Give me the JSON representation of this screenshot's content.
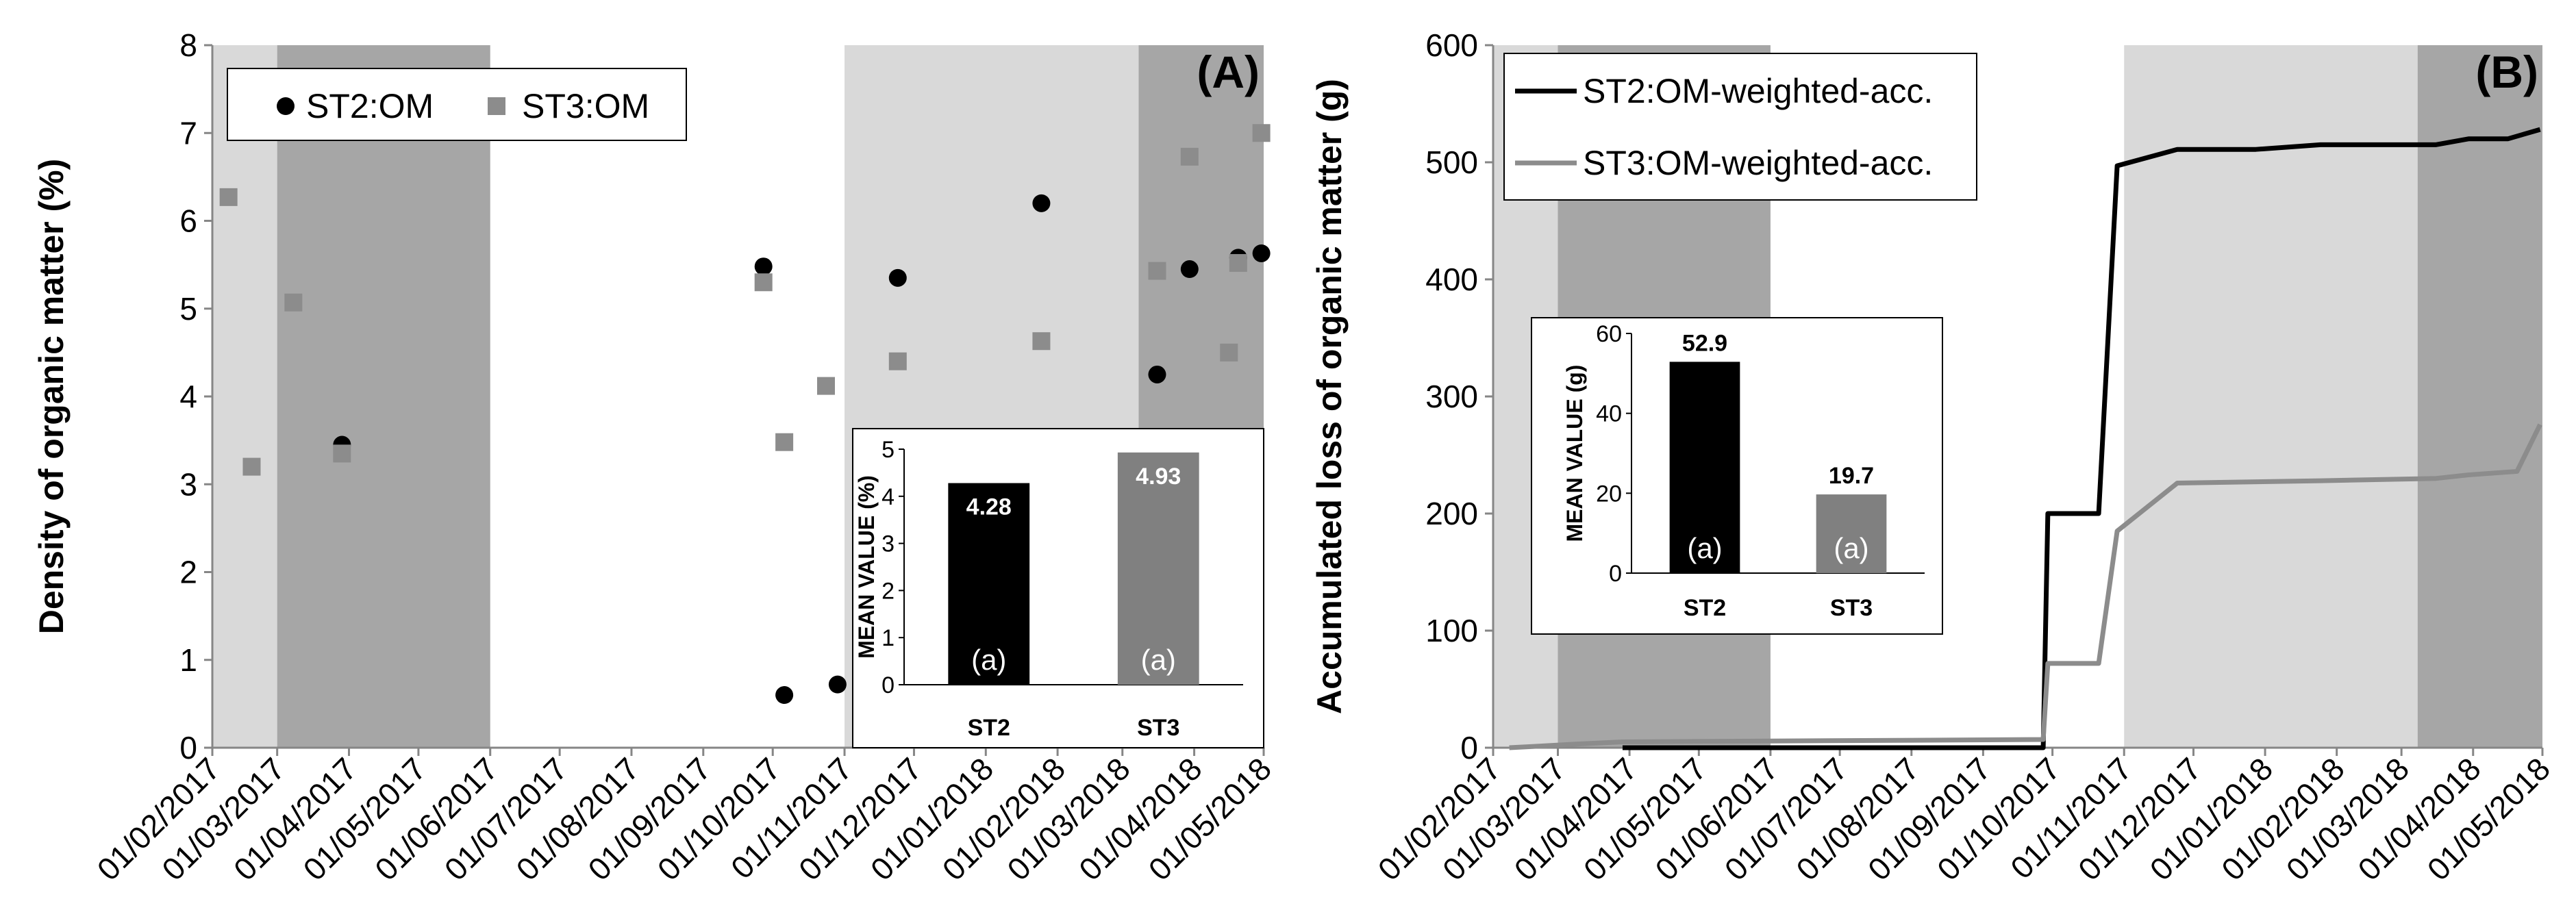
{
  "chart_data": [
    {
      "panel_label": "(A)",
      "type": "scatter",
      "ylabel": "Density of organic matter (%)",
      "ylim": [
        0,
        8
      ],
      "yticks": [
        "0",
        "1",
        "2",
        "3",
        "4",
        "5",
        "6",
        "7",
        "8"
      ],
      "x_start": "2017-02-01",
      "x_end": "2018-05-01",
      "xticks": [
        "01/02/2017",
        "01/03/2017",
        "01/04/2017",
        "01/05/2017",
        "01/06/2017",
        "01/07/2017",
        "01/08/2017",
        "01/09/2017",
        "01/10/2017",
        "01/11/2017",
        "01/12/2017",
        "01/01/2018",
        "01/02/2018",
        "01/03/2018",
        "01/04/2018",
        "01/05/2018"
      ],
      "shaded_periods": [
        {
          "from": "2017-02-01",
          "to": "2017-03-01",
          "shade": "light"
        },
        {
          "from": "2017-03-01",
          "to": "2017-06-01",
          "shade": "dark"
        },
        {
          "from": "2017-11-01",
          "to": "2018-03-08",
          "shade": "light"
        },
        {
          "from": "2018-03-08",
          "to": "2018-05-01",
          "shade": "dark"
        }
      ],
      "series": [
        {
          "name": "ST2:OM",
          "marker": "circle",
          "color": "#000000",
          "points": [
            {
              "date": "2017-03-29",
              "value": 3.45
            },
            {
              "date": "2017-09-27",
              "value": 5.48
            },
            {
              "date": "2017-10-06",
              "value": 0.6
            },
            {
              "date": "2017-10-29",
              "value": 0.72
            },
            {
              "date": "2017-11-24",
              "value": 5.35
            },
            {
              "date": "2018-01-25",
              "value": 6.2
            },
            {
              "date": "2018-03-16",
              "value": 4.25
            },
            {
              "date": "2018-03-30",
              "value": 5.45
            },
            {
              "date": "2018-04-20",
              "value": 5.58
            },
            {
              "date": "2018-04-30",
              "value": 5.63
            }
          ]
        },
        {
          "name": "ST3:OM",
          "marker": "square",
          "color": "#8c8c8c",
          "points": [
            {
              "date": "2017-02-08",
              "value": 6.27
            },
            {
              "date": "2017-02-18",
              "value": 3.2
            },
            {
              "date": "2017-03-08",
              "value": 5.07
            },
            {
              "date": "2017-03-29",
              "value": 3.35
            },
            {
              "date": "2017-09-27",
              "value": 5.3
            },
            {
              "date": "2017-10-06",
              "value": 3.48
            },
            {
              "date": "2017-10-24",
              "value": 4.12
            },
            {
              "date": "2017-11-24",
              "value": 4.4
            },
            {
              "date": "2018-01-25",
              "value": 4.63
            },
            {
              "date": "2018-03-16",
              "value": 5.43
            },
            {
              "date": "2018-03-30",
              "value": 6.73
            },
            {
              "date": "2018-04-16",
              "value": 4.5
            },
            {
              "date": "2018-04-20",
              "value": 5.52
            },
            {
              "date": "2018-04-30",
              "value": 7.0
            }
          ]
        }
      ],
      "legend": [
        "ST2:OM",
        "ST3:OM"
      ],
      "inset": {
        "type": "bar",
        "ylabel": "MEAN VALUE (%)",
        "ylim": [
          0,
          5
        ],
        "yticks": [
          "0",
          "1",
          "2",
          "3",
          "4",
          "5"
        ],
        "categories": [
          "ST2",
          "ST3"
        ],
        "values": [
          4.28,
          4.93
        ],
        "value_labels": [
          "4.28",
          "4.93"
        ],
        "significance": [
          "(a)",
          "(a)"
        ],
        "colors": [
          "#000000",
          "#808080"
        ]
      }
    },
    {
      "panel_label": "(B)",
      "type": "line",
      "ylabel": "Accumulated loss of organic matter (g)",
      "ylim": [
        0,
        600
      ],
      "yticks": [
        "0",
        "100",
        "200",
        "300",
        "400",
        "500",
        "600"
      ],
      "x_start": "2017-02-01",
      "x_end": "2018-05-01",
      "xticks": [
        "01/02/2017",
        "01/03/2017",
        "01/04/2017",
        "01/05/2017",
        "01/06/2017",
        "01/07/2017",
        "01/08/2017",
        "01/09/2017",
        "01/10/2017",
        "01/11/2017",
        "01/12/2017",
        "01/01/2018",
        "01/02/2018",
        "01/03/2018",
        "01/04/2018",
        "01/05/2018"
      ],
      "shaded_periods": [
        {
          "from": "2017-02-01",
          "to": "2017-03-01",
          "shade": "light"
        },
        {
          "from": "2017-03-01",
          "to": "2017-06-01",
          "shade": "dark"
        },
        {
          "from": "2017-11-01",
          "to": "2018-03-08",
          "shade": "light"
        },
        {
          "from": "2018-03-08",
          "to": "2018-05-01",
          "shade": "dark"
        }
      ],
      "series": [
        {
          "name": "ST2:OM-weighted-acc.",
          "color": "#000000",
          "points": [
            {
              "date": "2017-03-29",
              "value": 0
            },
            {
              "date": "2017-09-27",
              "value": 0
            },
            {
              "date": "2017-09-29",
              "value": 200
            },
            {
              "date": "2017-10-21",
              "value": 200
            },
            {
              "date": "2017-10-29",
              "value": 497
            },
            {
              "date": "2017-11-24",
              "value": 511
            },
            {
              "date": "2017-12-28",
              "value": 511
            },
            {
              "date": "2018-01-25",
              "value": 515
            },
            {
              "date": "2018-03-16",
              "value": 515
            },
            {
              "date": "2018-03-30",
              "value": 520
            },
            {
              "date": "2018-04-16",
              "value": 520
            },
            {
              "date": "2018-04-30",
              "value": 528
            }
          ]
        },
        {
          "name": "ST3:OM-weighted-acc.",
          "color": "#8c8c8c",
          "points": [
            {
              "date": "2017-02-08",
              "value": 0
            },
            {
              "date": "2017-02-18",
              "value": 1
            },
            {
              "date": "2017-03-08",
              "value": 3
            },
            {
              "date": "2017-03-29",
              "value": 5
            },
            {
              "date": "2017-09-27",
              "value": 7
            },
            {
              "date": "2017-09-29",
              "value": 72
            },
            {
              "date": "2017-10-21",
              "value": 72
            },
            {
              "date": "2017-10-29",
              "value": 185
            },
            {
              "date": "2017-11-24",
              "value": 226
            },
            {
              "date": "2018-01-25",
              "value": 228
            },
            {
              "date": "2018-03-16",
              "value": 230
            },
            {
              "date": "2018-03-30",
              "value": 233
            },
            {
              "date": "2018-04-20",
              "value": 236
            },
            {
              "date": "2018-04-30",
              "value": 276
            }
          ]
        }
      ],
      "legend": [
        "ST2:OM-weighted-acc.",
        "ST3:OM-weighted-acc."
      ],
      "inset": {
        "type": "bar",
        "ylabel": "MEAN VALUE (g)",
        "ylim": [
          0,
          60
        ],
        "yticks": [
          "0",
          "20",
          "40",
          "60"
        ],
        "categories": [
          "ST2",
          "ST3"
        ],
        "values": [
          52.9,
          19.7
        ],
        "value_labels": [
          "52.9",
          "19.7"
        ],
        "significance": [
          "(a)",
          "(a)"
        ],
        "colors": [
          "#000000",
          "#808080"
        ]
      }
    }
  ]
}
